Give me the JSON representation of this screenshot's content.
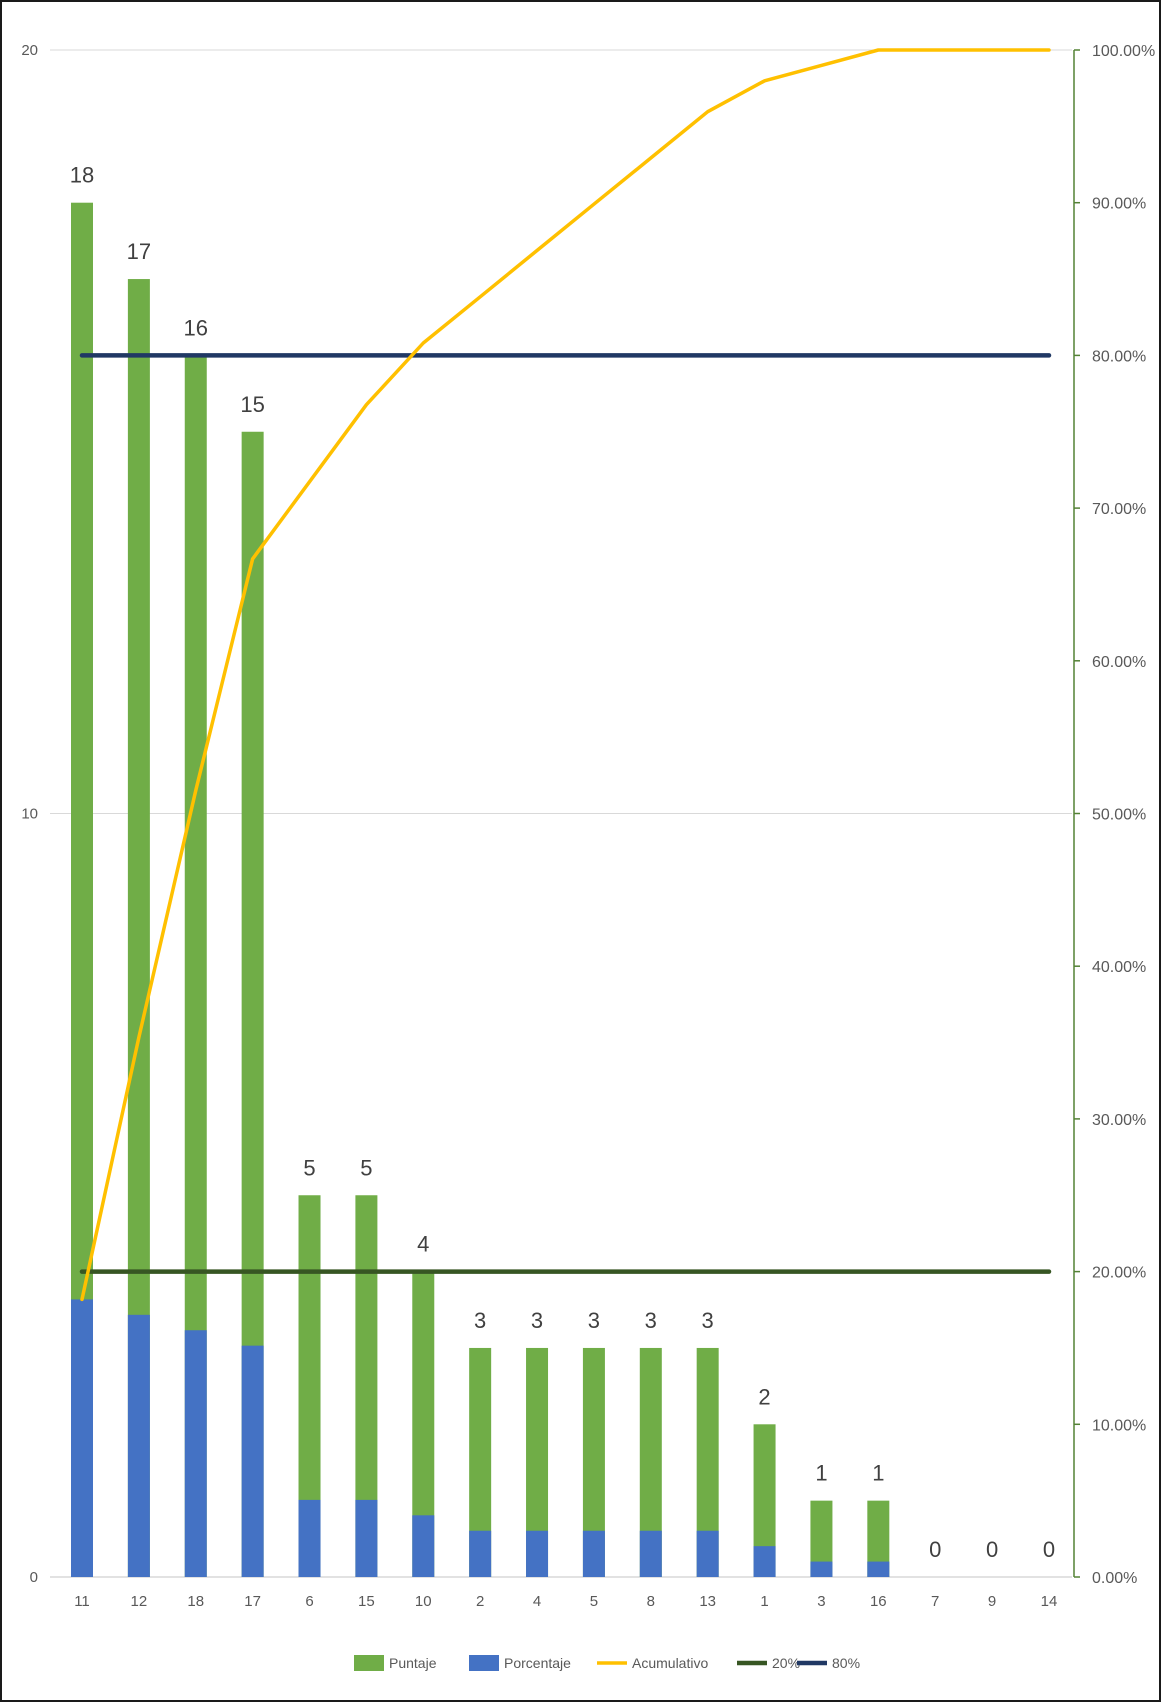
{
  "chart_data": {
    "type": "bar",
    "categories": [
      "11",
      "12",
      "18",
      "17",
      "6",
      "15",
      "10",
      "2",
      "4",
      "5",
      "8",
      "13",
      "1",
      "3",
      "16",
      "7",
      "9",
      "14"
    ],
    "series": [
      {
        "name": "Puntaje",
        "type": "bar",
        "color": "#70ad47",
        "values": [
          18,
          17,
          16,
          15,
          5,
          5,
          4,
          3,
          3,
          3,
          3,
          3,
          2,
          1,
          1,
          0,
          0,
          0
        ],
        "data_labels": [
          "18",
          "17",
          "16",
          "15",
          "5",
          "5",
          "4",
          "3",
          "3",
          "3",
          "3",
          "3",
          "2",
          "1",
          "1",
          "0",
          "0",
          "0"
        ]
      },
      {
        "name": "Porcentaje",
        "type": "bar",
        "color": "#4472c4",
        "axis": "right",
        "values": [
          0.1818,
          0.1717,
          0.1616,
          0.1515,
          0.0505,
          0.0505,
          0.0404,
          0.0303,
          0.0303,
          0.0303,
          0.0303,
          0.0303,
          0.0202,
          0.0101,
          0.0101,
          0,
          0,
          0
        ]
      },
      {
        "name": "Acumulativo",
        "type": "line",
        "color": "#ffc000",
        "axis": "right",
        "values": [
          0.1818,
          0.3535,
          0.5152,
          0.6667,
          0.7172,
          0.7677,
          0.8081,
          0.8384,
          0.8687,
          0.899,
          0.9293,
          0.9596,
          0.9798,
          0.9899,
          1.0,
          1.0,
          1.0,
          1.0
        ]
      },
      {
        "name": "20%",
        "type": "line",
        "color": "#375623",
        "axis": "right",
        "values": [
          0.2,
          0.2,
          0.2,
          0.2,
          0.2,
          0.2,
          0.2,
          0.2,
          0.2,
          0.2,
          0.2,
          0.2,
          0.2,
          0.2,
          0.2,
          0.2,
          0.2,
          0.2
        ]
      },
      {
        "name": "80%",
        "type": "line",
        "color": "#203864",
        "axis": "right",
        "values": [
          0.8,
          0.8,
          0.8,
          0.8,
          0.8,
          0.8,
          0.8,
          0.8,
          0.8,
          0.8,
          0.8,
          0.8,
          0.8,
          0.8,
          0.8,
          0.8,
          0.8,
          0.8
        ]
      }
    ],
    "y_left": {
      "min": 0,
      "max": 20,
      "ticks": [
        0,
        10,
        20
      ],
      "tick_labels": [
        "0",
        "10",
        "20"
      ]
    },
    "y_right": {
      "min": 0,
      "max": 1,
      "ticks": [
        0,
        0.1,
        0.2,
        0.3,
        0.4,
        0.5,
        0.6,
        0.7,
        0.8,
        0.9,
        1.0
      ],
      "tick_labels": [
        "0.00%",
        "10.00%",
        "20.00%",
        "30.00%",
        "40.00%",
        "50.00%",
        "60.00%",
        "70.00%",
        "80.00%",
        "90.00%",
        "100.00%"
      ],
      "color": "#548235"
    },
    "gridlines": "horizontal",
    "grid_color": "#d9d9d9",
    "legend_position": "bottom",
    "title": "",
    "xlabel": "",
    "ylabel": ""
  }
}
